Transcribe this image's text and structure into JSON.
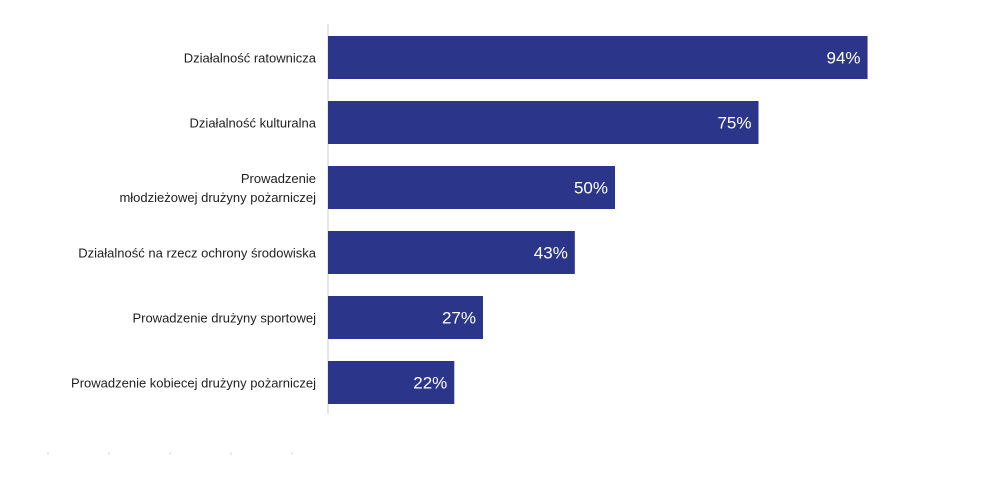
{
  "chart_data": {
    "type": "bar",
    "orientation": "horizontal",
    "categories": [
      [
        "Działalność ratownicza"
      ],
      [
        "Działalność kulturalna"
      ],
      [
        "Prowadzenie",
        "młodzieżowej drużyny pożarniczej"
      ],
      [
        "Działalność na rzecz ochrony środowiska"
      ],
      [
        "Prowadzenie drużyny sportowej"
      ],
      [
        "Prowadzenie kobiecej drużyny pożarniczej"
      ]
    ],
    "values": [
      94,
      75,
      50,
      43,
      27,
      22
    ],
    "value_labels": [
      "94%",
      "75%",
      "50%",
      "43%",
      "27%",
      "22%"
    ],
    "unit": "%",
    "xlim": [
      0,
      100
    ],
    "bar_color": "#2B3589",
    "value_label_color": "#ffffff",
    "axis_color": "#cccccc",
    "grid": false,
    "legend": false
  }
}
